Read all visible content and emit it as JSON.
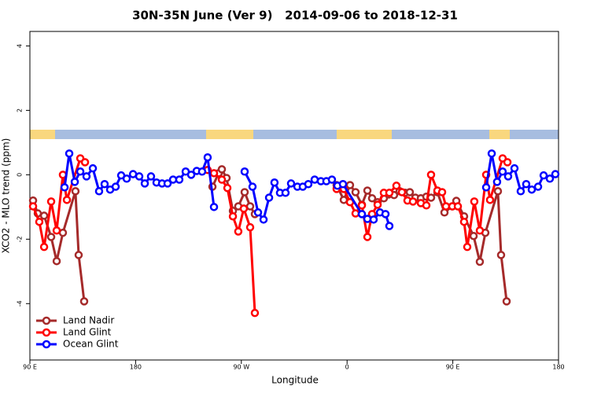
{
  "chart_data": {
    "type": "line",
    "title": "30N-35N June (Ver 9)   2014-09-06 to 2018-12-31",
    "x_label": "Longitude",
    "y_label": "XCO2 - MLO trend (ppm)",
    "xlim": [
      90,
      540
    ],
    "ylim": [
      -5.75,
      4.45
    ],
    "xticks": [
      {
        "value": 90,
        "label": "90 E"
      },
      180,
      {
        "value": 270,
        "label": "90 W"
      },
      {
        "value": 360,
        "label": "0"
      },
      {
        "value": 450,
        "label": "90 E"
      },
      {
        "value": 540,
        "label": "180"
      }
    ],
    "yticks": [
      -4,
      -2,
      0,
      2,
      4
    ],
    "legend": "bottom-left",
    "series": [
      {
        "name": "Land Nadir",
        "color": "#a52a2a",
        "x": [
          92.7,
          96.7,
          102.1,
          108.1,
          112.8,
          118.1,
          128.8,
          131.5,
          136.2,
          null,
          245.4,
          250.7,
          253.4,
          257.4,
          262.8,
          267.4,
          272.8,
          277.5,
          281.5,
          null,
          351.1,
          357.2,
          362.5,
          367.2,
          372.6,
          377.3,
          381.3,
          386.0,
          391.3,
          395.3,
          400.0,
          404.7,
          409.4,
          413.4,
          418.1,
          422.8,
          427.5,
          431.5,
          436.9,
          442.9,
          449.6,
          453.0,
          459.6,
          467.7,
          473.0,
          477.7,
          488.4,
          491.1,
          495.8
        ],
        "values": [
          -0.8,
          -1.2,
          -1.27,
          -1.93,
          -2.68,
          -1.8,
          -0.51,
          -2.49,
          -3.93,
          null,
          -0.37,
          0.05,
          0.17,
          -0.1,
          -1.12,
          -0.98,
          -0.54,
          -0.98,
          -1.22,
          null,
          -0.32,
          -0.78,
          -0.32,
          -0.54,
          -0.93,
          -0.49,
          -0.73,
          -0.85,
          -0.73,
          -0.61,
          -0.63,
          -0.51,
          -0.56,
          -0.54,
          -0.71,
          -0.73,
          -0.68,
          -0.71,
          -0.54,
          -1.17,
          -0.98,
          -0.81,
          -1.29,
          -1.9,
          -2.7,
          -1.8,
          -0.51,
          -2.49,
          -3.93
        ]
      },
      {
        "name": "Land Glint",
        "color": "#ff0000",
        "x": [
          92.7,
          98.0,
          102.1,
          108.1,
          112.8,
          118.1,
          121.5,
          132.9,
          136.9,
          null,
          241.3,
          246.7,
          253.4,
          258.1,
          262.8,
          267.4,
          272.1,
          277.5,
          281.5,
          null,
          351.1,
          357.2,
          362.5,
          367.2,
          372.6,
          377.3,
          381.3,
          386.0,
          391.3,
          396.0,
          402.0,
          406.7,
          411.4,
          416.1,
          422.8,
          427.5,
          431.5,
          436.9,
          440.9,
          444.2,
          449.6,
          454.3,
          459.6,
          462.3,
          468.3,
          473.0,
          478.4,
          481.7,
          492.4,
          496.5
        ],
        "values": [
          -0.98,
          -1.46,
          -2.24,
          -0.83,
          -1.73,
          0,
          -0.78,
          0.51,
          0.39,
          null,
          0.15,
          0.05,
          -0.15,
          -0.41,
          -1.29,
          -1.76,
          -1.05,
          -1.63,
          -4.29,
          null,
          -0.44,
          -0.44,
          -0.85,
          -1.2,
          -0.95,
          -1.93,
          -1.22,
          -0.93,
          -0.56,
          -0.56,
          -0.34,
          -0.54,
          -0.8,
          -0.83,
          -0.88,
          -0.95,
          0,
          -0.49,
          -0.54,
          -0.98,
          -0.98,
          -0.98,
          -1.46,
          -2.24,
          -0.83,
          -1.73,
          0,
          -0.78,
          0.51,
          0.39
        ]
      },
      {
        "name": "Ocean Glint",
        "color": "#0000ff",
        "x": [
          119.5,
          123.5,
          128.2,
          132.9,
          138.2,
          143.6,
          148.9,
          153.6,
          158.3,
          163.0,
          167.7,
          172.4,
          177.8,
          183.1,
          187.8,
          193.1,
          197.8,
          202.5,
          207.2,
          211.9,
          217.2,
          222.6,
          227.3,
          232.0,
          236.6,
          241.3,
          246.7,
          null,
          272.8,
          279.5,
          284.2,
          288.9,
          293.6,
          298.2,
          302.9,
          307.6,
          312.3,
          317.7,
          322.3,
          327.0,
          332.4,
          337.7,
          342.4,
          347.1,
          351.8,
          356.5,
          372.6,
          377.3,
          382.6,
          388.0,
          392.7,
          396.0,
          null,
          478.4,
          483.1,
          487.7,
          492.4,
          497.1,
          502.5,
          507.8,
          512.5,
          517.2,
          522.6,
          527.3,
          532.6,
          537.3
        ],
        "values": [
          -0.39,
          0.66,
          -0.22,
          0.1,
          -0.05,
          0.2,
          -0.51,
          -0.29,
          -0.46,
          -0.37,
          -0.02,
          -0.12,
          0.02,
          -0.05,
          -0.27,
          -0.05,
          -0.24,
          -0.27,
          -0.27,
          -0.15,
          -0.15,
          0.1,
          0,
          0.12,
          0.1,
          0.54,
          -1.0,
          null,
          0.1,
          -0.37,
          -1.17,
          -1.39,
          -0.71,
          -0.24,
          -0.56,
          -0.56,
          -0.27,
          -0.37,
          -0.37,
          -0.29,
          -0.15,
          -0.2,
          -0.2,
          -0.15,
          -0.34,
          -0.29,
          -1.22,
          -1.37,
          -1.39,
          -1.17,
          -1.22,
          -1.59,
          null,
          -0.39,
          0.66,
          -0.22,
          0.1,
          -0.05,
          0.2,
          -0.51,
          -0.29,
          -0.46,
          -0.37,
          -0.02,
          -0.12,
          0.02
        ]
      }
    ]
  }
}
